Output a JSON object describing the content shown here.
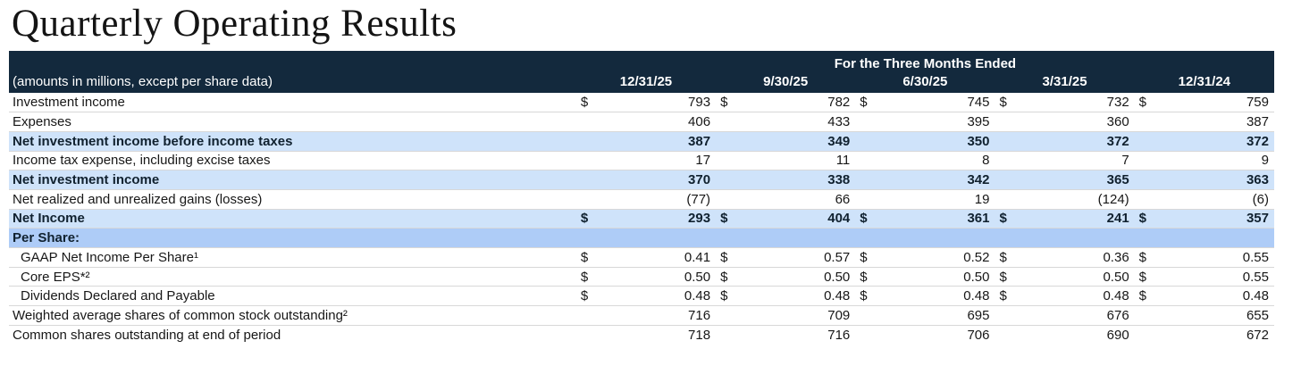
{
  "page": {
    "title": "Quarterly Operating Results"
  },
  "colors": {
    "header_navy": "#13293d",
    "highlight_row_blue": "#cfe3fa",
    "section_row_blue": "#aeccf7",
    "row_divider_gray": "#d8d8d8",
    "header_text": "#ffffff",
    "body_text": "#171717"
  },
  "table": {
    "currency_symbol": "$",
    "header": {
      "span_label": "For the Three Months Ended",
      "label_note": "(amounts in millions, except per share data)",
      "columns": [
        "12/31/25",
        "9/30/25",
        "6/30/25",
        "3/31/25",
        "12/31/24"
      ]
    },
    "rows": [
      {
        "label": "Investment income",
        "style": "normal",
        "dollar": true,
        "values": [
          "793",
          "782",
          "745",
          "732",
          "759"
        ]
      },
      {
        "label": "Expenses",
        "style": "normal",
        "dollar": false,
        "values": [
          "406",
          "433",
          "395",
          "360",
          "387"
        ]
      },
      {
        "label": "Net investment income before income taxes",
        "style": "highlight",
        "dollar": false,
        "values": [
          "387",
          "349",
          "350",
          "372",
          "372"
        ]
      },
      {
        "label": "Income tax expense, including excise taxes",
        "style": "normal",
        "dollar": false,
        "values": [
          "17",
          "11",
          "8",
          "7",
          "9"
        ]
      },
      {
        "label": "Net investment income",
        "style": "highlight",
        "dollar": false,
        "values": [
          "370",
          "338",
          "342",
          "365",
          "363"
        ]
      },
      {
        "label": "Net realized and unrealized gains (losses)",
        "style": "normal",
        "dollar": false,
        "values": [
          "(77)",
          "66",
          "19",
          "(124)",
          "(6)"
        ]
      },
      {
        "label": "Net Income",
        "style": "highlight",
        "dollar": true,
        "values": [
          "293",
          "404",
          "361",
          "241",
          "357"
        ]
      },
      {
        "label": "Per Share:",
        "style": "section",
        "dollar": false,
        "values": [
          "",
          "",
          "",
          "",
          ""
        ]
      },
      {
        "label": "GAAP Net Income Per Share¹",
        "style": "indent",
        "dollar": true,
        "values": [
          "0.41",
          "0.57",
          "0.52",
          "0.36",
          "0.55"
        ]
      },
      {
        "label": "Core EPS*²",
        "style": "indent",
        "dollar": true,
        "values": [
          "0.50",
          "0.50",
          "0.50",
          "0.50",
          "0.55"
        ]
      },
      {
        "label": "Dividends Declared and Payable",
        "style": "indent",
        "dollar": true,
        "values": [
          "0.48",
          "0.48",
          "0.48",
          "0.48",
          "0.48"
        ]
      },
      {
        "label": "Weighted average shares of common stock outstanding²",
        "style": "normal",
        "dollar": false,
        "values": [
          "716",
          "709",
          "695",
          "676",
          "655"
        ]
      },
      {
        "label": "Common shares outstanding at end of period",
        "style": "normal",
        "dollar": false,
        "values": [
          "718",
          "716",
          "706",
          "690",
          "672"
        ]
      }
    ]
  }
}
